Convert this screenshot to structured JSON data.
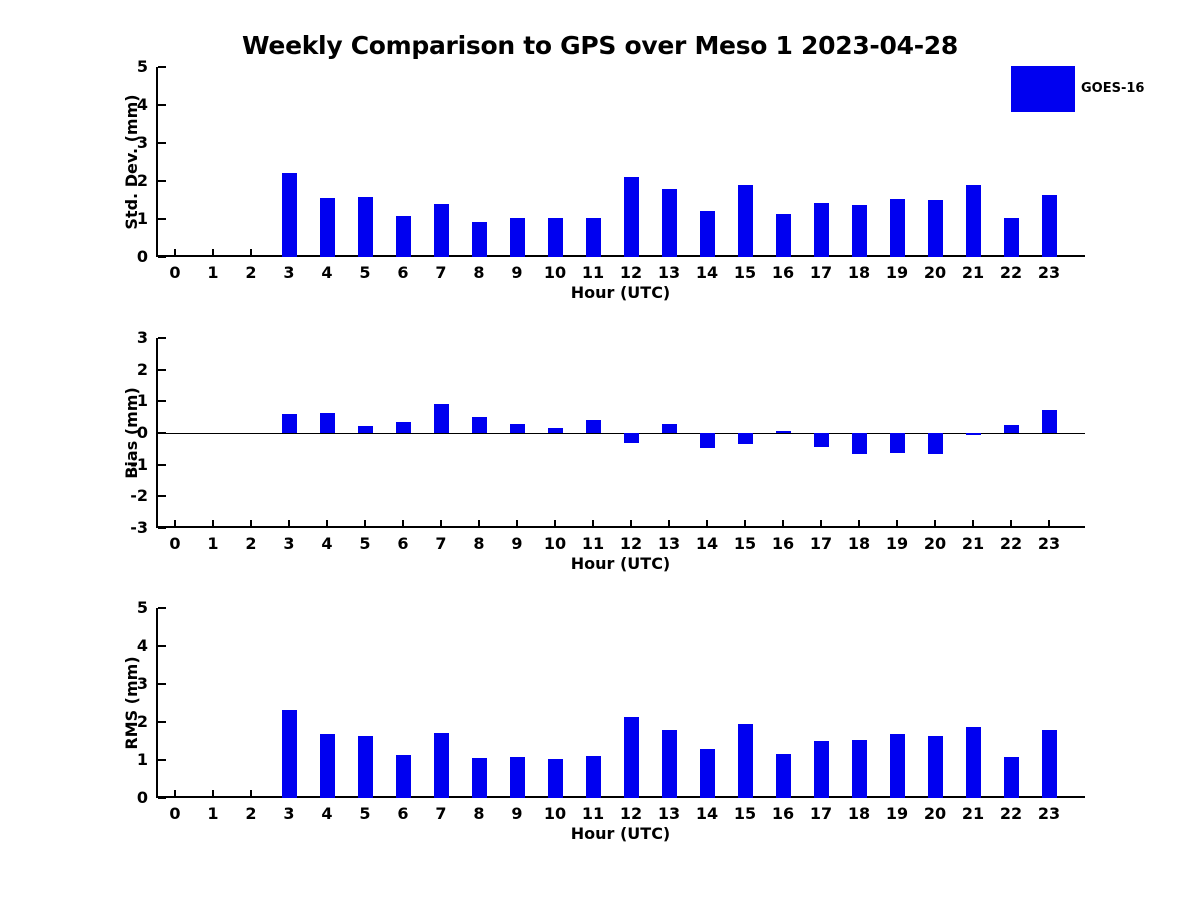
{
  "title": "Weekly Comparison to GPS over Meso 1 2023-04-28",
  "legend": {
    "label": "GOES-16",
    "position": "top-right-of-first-panel"
  },
  "colors": {
    "bar": "#0000f0",
    "axis": "#000000",
    "background": "#ffffff",
    "text": "#000000"
  },
  "xlabel": "Hour (UTC)",
  "chart_data": [
    {
      "type": "bar",
      "panel": "std_dev",
      "ylabel": "Std. Dev. (mm)",
      "xlabel": "Hour (UTC)",
      "series_name": "GOES-16",
      "categories": [
        "0",
        "1",
        "2",
        "3",
        "4",
        "5",
        "6",
        "7",
        "8",
        "9",
        "10",
        "11",
        "12",
        "13",
        "14",
        "15",
        "16",
        "17",
        "18",
        "19",
        "20",
        "21",
        "22",
        "23"
      ],
      "values": [
        0,
        0,
        0,
        2.22,
        1.55,
        1.58,
        1.07,
        1.4,
        0.92,
        1.03,
        1.03,
        1.03,
        2.1,
        1.78,
        1.2,
        1.9,
        1.13,
        1.43,
        1.37,
        1.53,
        1.49,
        1.89,
        1.03,
        1.64
      ],
      "ylim": [
        0,
        5
      ],
      "yticks": [
        0,
        1,
        2,
        3,
        4,
        5
      ],
      "grid": false
    },
    {
      "type": "bar",
      "panel": "bias",
      "ylabel": "Bias (mm)",
      "xlabel": "Hour (UTC)",
      "series_name": "GOES-16",
      "categories": [
        "0",
        "1",
        "2",
        "3",
        "4",
        "5",
        "6",
        "7",
        "8",
        "9",
        "10",
        "11",
        "12",
        "13",
        "14",
        "15",
        "16",
        "17",
        "18",
        "19",
        "20",
        "21",
        "22",
        "23"
      ],
      "values": [
        0,
        0,
        0,
        0.6,
        0.63,
        0.22,
        0.35,
        0.93,
        0.5,
        0.28,
        0.15,
        0.42,
        -0.33,
        0.28,
        -0.47,
        -0.35,
        0.05,
        -0.45,
        -0.65,
        -0.63,
        -0.65,
        -0.06,
        0.26,
        0.72
      ],
      "ylim": [
        -3,
        3
      ],
      "yticks": [
        3,
        2,
        1,
        0,
        -1,
        -2,
        -3
      ],
      "zero_line": true,
      "grid": false
    },
    {
      "type": "bar",
      "panel": "rms",
      "ylabel": "RMS (mm)",
      "xlabel": "Hour (UTC)",
      "series_name": "GOES-16",
      "categories": [
        "0",
        "1",
        "2",
        "3",
        "4",
        "5",
        "6",
        "7",
        "8",
        "9",
        "10",
        "11",
        "12",
        "13",
        "14",
        "15",
        "16",
        "17",
        "18",
        "19",
        "20",
        "21",
        "22",
        "23"
      ],
      "values": [
        0,
        0,
        0,
        2.31,
        1.68,
        1.62,
        1.12,
        1.71,
        1.05,
        1.07,
        1.02,
        1.1,
        2.13,
        1.8,
        1.29,
        1.95,
        1.16,
        1.5,
        1.53,
        1.69,
        1.63,
        1.88,
        1.07,
        1.79
      ],
      "ylim": [
        0,
        5
      ],
      "yticks": [
        0,
        1,
        2,
        3,
        4,
        5
      ],
      "grid": false
    }
  ]
}
